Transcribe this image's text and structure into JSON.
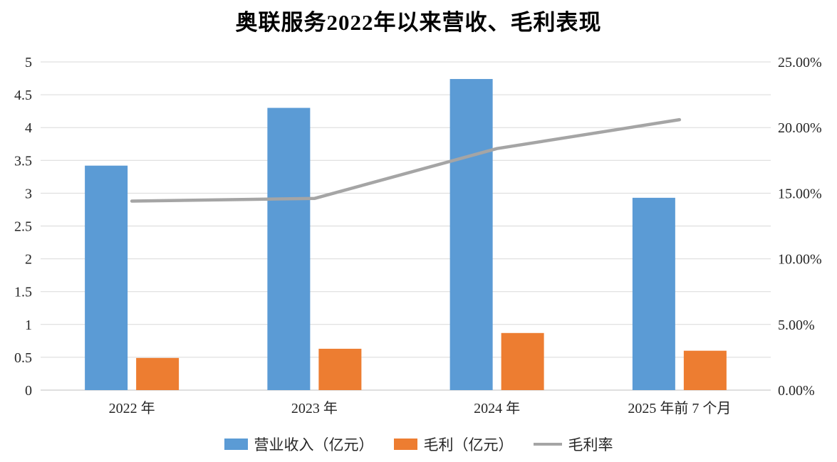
{
  "title": "奥联服务2022年以来营收、毛利表现",
  "chart_data": {
    "type": "bar",
    "subtype": "bar+line combo",
    "title": "奥联服务2022年以来营收、毛利表现",
    "categories": [
      "2022 年",
      "2023 年",
      "2024 年",
      "2025 年前 7 个月"
    ],
    "series": [
      {
        "name": "营业收入（亿元）",
        "type": "bar",
        "axis": "left",
        "color": "#5B9BD5",
        "values": [
          3.42,
          4.3,
          4.74,
          2.93
        ]
      },
      {
        "name": "毛利（亿元）",
        "type": "bar",
        "axis": "left",
        "color": "#ED7D31",
        "values": [
          0.49,
          0.63,
          0.87,
          0.6
        ]
      },
      {
        "name": "毛利率",
        "type": "line",
        "axis": "right",
        "color": "#A5A5A5",
        "values": [
          14.4,
          14.6,
          18.4,
          20.6
        ]
      }
    ],
    "left_axis": {
      "min": 0,
      "max": 5,
      "step": 0.5
    },
    "right_axis": {
      "min": 0,
      "max": 25,
      "step": 5,
      "format": "percent",
      "decimals": 2,
      "tick_labels": [
        "0.00%",
        "5.00%",
        "10.00%",
        "15.00%",
        "20.00%",
        "25.00%"
      ]
    },
    "grid": true,
    "legend_position": "bottom",
    "gridline_color": "#D9D9D9",
    "axis_line_color": "#BFBFBF"
  }
}
